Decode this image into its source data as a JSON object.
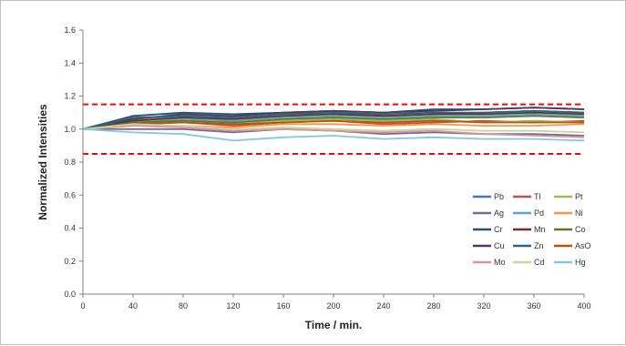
{
  "chart_data": {
    "type": "line",
    "xlabel": "Time / min.",
    "ylabel": "Normalized Intensities",
    "xlim": [
      0,
      400
    ],
    "ylim": [
      0,
      1.6
    ],
    "x_ticks": [
      0,
      40,
      80,
      120,
      160,
      200,
      240,
      280,
      320,
      360,
      400
    ],
    "y_ticks": [
      "0.0",
      "0.2",
      "0.4",
      "0.6",
      "0.8",
      "1.0",
      "1.2",
      "1.4",
      "1.6"
    ],
    "grid": false,
    "legend_position": "bottom-right",
    "legend_columns": 3,
    "reference_lines": [
      {
        "y": 1.15,
        "color": "#ff0000",
        "style": "dashed"
      },
      {
        "y": 0.85,
        "color": "#ff0000",
        "style": "dashed"
      }
    ],
    "x": [
      0,
      40,
      80,
      120,
      160,
      200,
      240,
      280,
      320,
      360,
      400
    ],
    "series": [
      {
        "name": "Pb",
        "color": "#4472c4",
        "values": [
          1.0,
          1.06,
          1.08,
          1.07,
          1.09,
          1.1,
          1.08,
          1.09,
          1.1,
          1.11,
          1.1
        ]
      },
      {
        "name": "Tl",
        "color": "#c0504d",
        "values": [
          1.0,
          1.03,
          1.04,
          1.02,
          1.04,
          1.05,
          1.03,
          1.04,
          1.05,
          1.04,
          1.05
        ]
      },
      {
        "name": "Pt",
        "color": "#9bbb59",
        "values": [
          1.0,
          1.05,
          1.1,
          1.04,
          1.05,
          1.06,
          1.05,
          1.06,
          1.04,
          1.05,
          1.04
        ]
      },
      {
        "name": "Ag",
        "color": "#8064a2",
        "values": [
          1.0,
          1.0,
          1.0,
          0.98,
          1.0,
          0.99,
          0.97,
          0.98,
          0.97,
          0.97,
          0.96
        ]
      },
      {
        "name": "Pd",
        "color": "#4bacc6",
        "values": [
          1.0,
          1.04,
          1.06,
          1.05,
          1.07,
          1.08,
          1.07,
          1.08,
          1.08,
          1.09,
          1.08
        ]
      },
      {
        "name": "Ni",
        "color": "#f79646",
        "values": [
          1.0,
          1.02,
          1.02,
          1.01,
          1.03,
          1.03,
          1.02,
          1.03,
          1.02,
          1.02,
          1.03
        ]
      },
      {
        "name": "Cr",
        "color": "#2c4d75",
        "values": [
          1.0,
          1.08,
          1.1,
          1.09,
          1.1,
          1.11,
          1.1,
          1.12,
          1.12,
          1.13,
          1.12
        ]
      },
      {
        "name": "Mn",
        "color": "#772c2a",
        "values": [
          1.0,
          1.05,
          1.07,
          1.06,
          1.08,
          1.09,
          1.08,
          1.09,
          1.09,
          1.1,
          1.09
        ]
      },
      {
        "name": "Co",
        "color": "#5f7530",
        "values": [
          1.0,
          1.04,
          1.05,
          1.04,
          1.06,
          1.07,
          1.06,
          1.07,
          1.07,
          1.08,
          1.07
        ]
      },
      {
        "name": "Cu",
        "color": "#4d3b62",
        "values": [
          1.0,
          1.06,
          1.09,
          1.08,
          1.1,
          1.11,
          1.1,
          1.11,
          1.12,
          1.13,
          1.12
        ]
      },
      {
        "name": "Zn",
        "color": "#276a7c",
        "values": [
          1.0,
          1.07,
          1.08,
          1.07,
          1.09,
          1.1,
          1.09,
          1.1,
          1.1,
          1.11,
          1.1
        ]
      },
      {
        "name": "AsO",
        "color": "#b65708",
        "values": [
          1.0,
          1.03,
          1.04,
          1.03,
          1.04,
          1.05,
          1.04,
          1.05,
          1.04,
          1.04,
          1.04
        ]
      },
      {
        "name": "Mo",
        "color": "#d99694",
        "values": [
          1.0,
          1.02,
          1.01,
          0.99,
          1.0,
          0.99,
          0.98,
          0.99,
          0.97,
          0.96,
          0.95
        ]
      },
      {
        "name": "Cd",
        "color": "#c3d69b",
        "values": [
          1.0,
          1.03,
          1.02,
          1.0,
          1.01,
          1.0,
          0.99,
          1.0,
          0.99,
          0.99,
          0.98
        ]
      },
      {
        "name": "Hg",
        "color": "#7fc9dc",
        "values": [
          1.0,
          0.98,
          0.97,
          0.93,
          0.95,
          0.96,
          0.94,
          0.95,
          0.94,
          0.94,
          0.93
        ]
      }
    ]
  }
}
